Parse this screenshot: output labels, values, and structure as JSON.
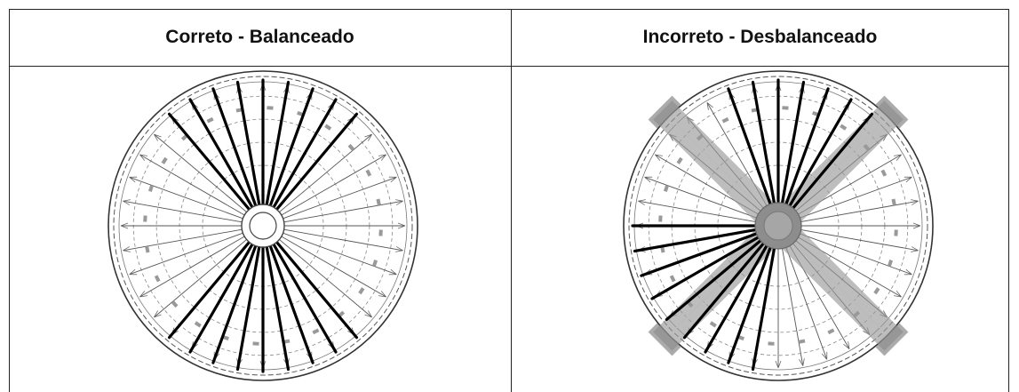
{
  "table": {
    "columns": [
      {
        "title": "Correto - Balanceado",
        "state": "balanced"
      },
      {
        "title": "Incorreto - Desbalanceado",
        "state": "unbalanced"
      }
    ]
  },
  "diagram": {
    "spoke_count": 36,
    "marker_count": 24,
    "highlight_color": "#000000",
    "bar_color": "#9a9a9a",
    "spoke_color": "#555555",
    "balanced": {
      "highlighted_spokes_top": [
        32,
        33,
        34,
        35,
        0,
        1,
        2,
        3,
        4
      ],
      "highlighted_spokes_bottom": [
        14,
        15,
        16,
        17,
        18,
        19,
        20,
        21,
        22
      ]
    },
    "unbalanced": {
      "highlighted_spokes_top": [
        34,
        35,
        0,
        1,
        2,
        3,
        4
      ],
      "highlighted_spokes_left": [
        19,
        20,
        21,
        22,
        23,
        24,
        25,
        26,
        27
      ],
      "cross_bars": true
    }
  }
}
